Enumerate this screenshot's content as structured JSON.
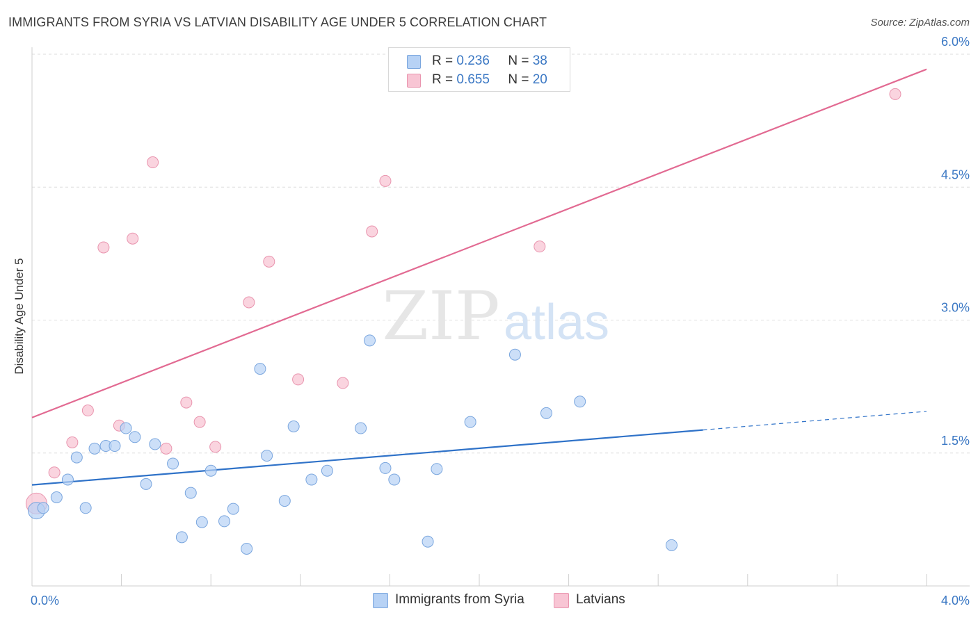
{
  "header": {
    "title": "IMMIGRANTS FROM SYRIA VS LATVIAN DISABILITY AGE UNDER 5 CORRELATION CHART",
    "source": "Source: ZipAtlas.com"
  },
  "watermark": {
    "zip": "ZIP",
    "atlas": "atlas"
  },
  "legend_top": [
    {
      "r_label": "R =",
      "r_value": "0.236",
      "n_label": "N =",
      "n_value": "38"
    },
    {
      "r_label": "R =",
      "r_value": "0.655",
      "n_label": "N =",
      "n_value": "20"
    }
  ],
  "legend_bottom": [
    "Immigrants from Syria",
    "Latvians"
  ],
  "colors": {
    "blue_fill": "#b7d2f5",
    "blue_stroke": "#7aa6de",
    "blue_line": "#2f72c8",
    "pink_fill": "#f8c5d4",
    "pink_stroke": "#e994ae",
    "pink_line": "#e26a92",
    "axis_text": "#3b78c4",
    "grid": "#dedede"
  },
  "chart_data": {
    "type": "scatter",
    "title": "IMMIGRANTS FROM SYRIA VS LATVIAN DISABILITY AGE UNDER 5 CORRELATION CHART",
    "xlabel": "",
    "ylabel": "Disability Age Under 5",
    "xlim": [
      0,
      4.0
    ],
    "ylim": [
      0,
      6.0
    ],
    "x_tick_labels": [
      "0.0%",
      "4.0%"
    ],
    "y_tick_labels": [
      "1.5%",
      "3.0%",
      "4.5%",
      "6.0%"
    ],
    "y_ticks": [
      1.5,
      3.0,
      4.5,
      6.0
    ],
    "grid": true,
    "series": [
      {
        "name": "Immigrants from Syria",
        "r": 0.236,
        "n": 38,
        "points": [
          [
            0.02,
            0.85
          ],
          [
            0.05,
            0.88
          ],
          [
            0.11,
            1.0
          ],
          [
            0.16,
            1.2
          ],
          [
            0.2,
            1.45
          ],
          [
            0.24,
            0.88
          ],
          [
            0.28,
            1.55
          ],
          [
            0.33,
            1.58
          ],
          [
            0.37,
            1.58
          ],
          [
            0.42,
            1.78
          ],
          [
            0.46,
            1.68
          ],
          [
            0.51,
            1.15
          ],
          [
            0.55,
            1.6
          ],
          [
            0.63,
            1.38
          ],
          [
            0.67,
            0.55
          ],
          [
            0.71,
            1.05
          ],
          [
            0.76,
            0.72
          ],
          [
            0.8,
            1.3
          ],
          [
            0.86,
            0.73
          ],
          [
            0.9,
            0.87
          ],
          [
            0.96,
            0.42
          ],
          [
            1.02,
            2.45
          ],
          [
            1.05,
            1.47
          ],
          [
            1.13,
            0.96
          ],
          [
            1.17,
            1.8
          ],
          [
            1.25,
            1.2
          ],
          [
            1.32,
            1.3
          ],
          [
            1.47,
            1.78
          ],
          [
            1.51,
            2.77
          ],
          [
            1.58,
            1.33
          ],
          [
            1.62,
            1.2
          ],
          [
            1.77,
            0.5
          ],
          [
            1.81,
            1.32
          ],
          [
            1.96,
            1.85
          ],
          [
            2.16,
            2.61
          ],
          [
            2.3,
            1.95
          ],
          [
            2.45,
            2.08
          ],
          [
            2.86,
            0.46
          ]
        ],
        "trend": {
          "x0": 0.0,
          "y0": 1.14,
          "x1": 3.0,
          "y1": 1.76,
          "dashed_to_x": 4.0,
          "dashed_to_y": 1.97
        }
      },
      {
        "name": "Latvians",
        "r": 0.655,
        "n": 20,
        "points": [
          [
            0.02,
            0.93
          ],
          [
            0.1,
            1.28
          ],
          [
            0.18,
            1.62
          ],
          [
            0.25,
            1.98
          ],
          [
            0.32,
            3.82
          ],
          [
            0.39,
            1.81
          ],
          [
            0.45,
            3.92
          ],
          [
            0.54,
            4.78
          ],
          [
            0.6,
            1.55
          ],
          [
            0.69,
            2.07
          ],
          [
            0.75,
            1.85
          ],
          [
            0.82,
            1.57
          ],
          [
            0.97,
            3.2
          ],
          [
            1.06,
            3.66
          ],
          [
            1.19,
            2.33
          ],
          [
            1.39,
            2.29
          ],
          [
            1.52,
            4.0
          ],
          [
            1.58,
            4.57
          ],
          [
            2.27,
            3.83
          ],
          [
            3.86,
            5.55
          ]
        ],
        "trend": {
          "x0": 0.0,
          "y0": 1.9,
          "x1": 4.0,
          "y1": 5.83
        }
      }
    ]
  }
}
